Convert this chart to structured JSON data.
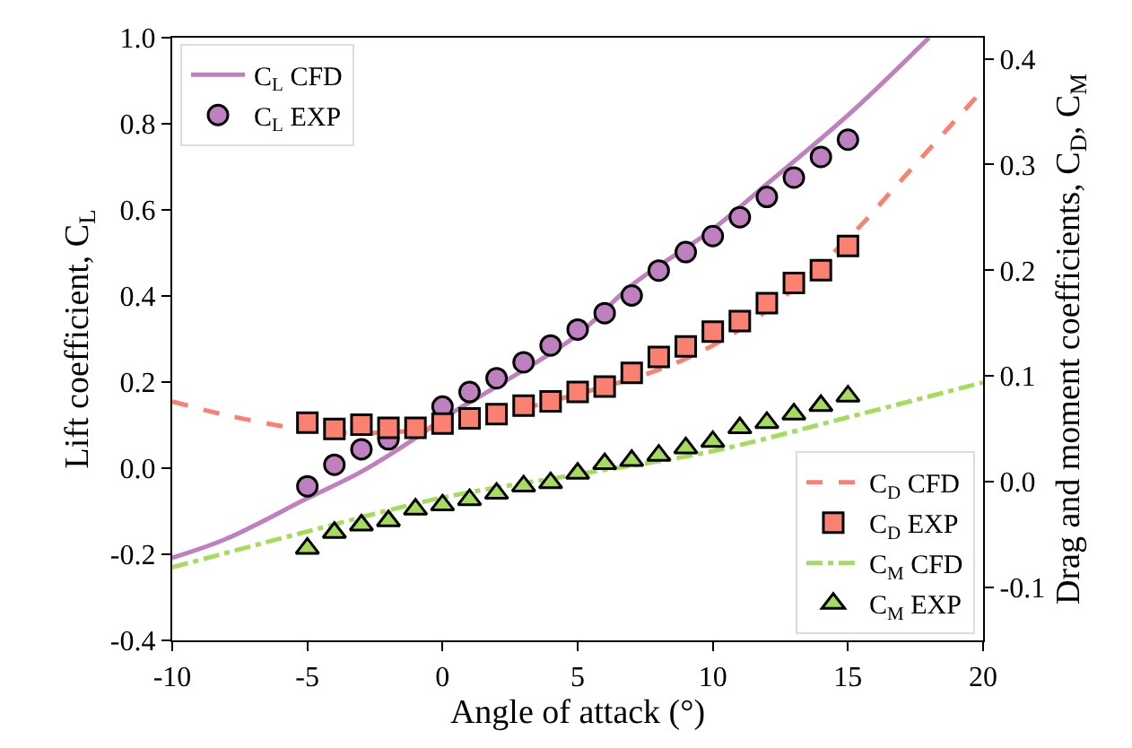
{
  "chart_data": {
    "type": "line",
    "xlabel": "Angle of attack (°)",
    "ylabel": "Lift coefficient, C$_{L}$",
    "y2label": "Drag and moment coefficients, C$_{D}$, C$_{M}$",
    "xlim": [
      -10,
      20
    ],
    "xticks": [
      -10,
      -5,
      0,
      5,
      10,
      15,
      20
    ],
    "ylim": [
      -0.4,
      1.0
    ],
    "yticks": [
      {
        "value": -0.4,
        "label": "-0.4"
      },
      {
        "value": -0.2,
        "label": "-0.2"
      },
      {
        "value": 0,
        "label": "0.0"
      },
      {
        "value": 0.2,
        "label": "0.2"
      },
      {
        "value": 0.4,
        "label": "0.4"
      },
      {
        "value": 0.6,
        "label": "0.6"
      },
      {
        "value": 0.8,
        "label": "0.8"
      },
      {
        "value": 1.0,
        "label": "1.0"
      }
    ],
    "y2lim": [
      -0.15,
      0.42
    ],
    "y2ticks": [
      {
        "value": -0.1,
        "label": "-0.1"
      },
      {
        "value": 0,
        "label": "0.0"
      },
      {
        "value": 0.1,
        "label": "0.1"
      },
      {
        "value": 0.2,
        "label": "0.2"
      },
      {
        "value": 0.3,
        "label": "0.3"
      },
      {
        "value": 0.4,
        "label": "0.4"
      }
    ],
    "legend": [
      "top left",
      "bottom right"
    ],
    "series": [
      {
        "name": "C$_{L}$ CFD",
        "line_style": "solid",
        "marker": "none",
        "color": "#bf80c0",
        "x": [
          -10,
          -8,
          -5,
          -3,
          -1,
          0,
          2,
          5,
          7,
          10,
          12,
          15,
          18
        ],
        "values": [
          -0.208,
          -0.164,
          -0.07,
          -0.008,
          0.07,
          0.115,
          0.19,
          0.31,
          0.425,
          0.555,
          0.66,
          0.82,
          1.0
        ]
      },
      {
        "name": "C$_{L}$ EXP",
        "type": "scatter",
        "marker": "circle",
        "color": "#bf80c0",
        "x": [
          -5,
          -4,
          -3,
          -2,
          -1,
          0,
          1,
          2,
          3,
          4,
          5,
          6,
          7,
          8,
          9,
          10,
          11,
          12,
          13,
          14,
          15
        ],
        "values": [
          -0.042,
          0.008,
          0.044,
          0.067,
          null,
          0.143,
          0.177,
          0.209,
          0.246,
          0.285,
          0.322,
          0.36,
          0.401,
          0.459,
          0.502,
          0.539,
          0.583,
          0.63,
          0.675,
          0.723,
          0.763
        ]
      },
      {
        "name": "C$_{D}$ CFD",
        "axis": "y2",
        "line_style": "dashed",
        "marker": "none",
        "color": "#fa8072",
        "x": [
          -10,
          -8,
          -5,
          -3,
          0,
          5,
          8,
          10,
          12,
          15,
          17,
          20
        ],
        "values": [
          0.076,
          0.063,
          0.049,
          0.046,
          0.052,
          0.083,
          0.106,
          0.129,
          0.162,
          0.23,
          0.286,
          0.371
        ]
      },
      {
        "name": "C$_{D}$ EXP",
        "type": "scatter",
        "axis": "y2",
        "marker": "square",
        "color": "#fa8072",
        "x": [
          -5,
          -4,
          -3,
          -2,
          -1,
          0,
          1,
          2,
          3,
          4,
          5,
          6,
          7,
          8,
          9,
          10,
          11,
          12,
          13,
          14,
          15
        ],
        "values": [
          0.056,
          0.05,
          0.054,
          0.051,
          0.051,
          0.055,
          0.06,
          0.064,
          0.072,
          0.076,
          0.085,
          0.09,
          0.103,
          0.118,
          0.128,
          0.142,
          0.152,
          0.169,
          0.188,
          0.2,
          0.223
        ]
      },
      {
        "name": "C$_{M}$ CFD",
        "axis": "y2",
        "line_style": "dashdot",
        "marker": "none",
        "color": "#a6dc5e",
        "x": [
          -10,
          -5,
          0,
          5,
          10,
          15,
          20
        ],
        "values": [
          -0.081,
          -0.047,
          -0.015,
          0.007,
          0.029,
          0.061,
          0.094
        ]
      },
      {
        "name": "C$_{M}$ EXP",
        "type": "scatter",
        "axis": "y2",
        "marker": "triangle",
        "color": "#a6dc5e",
        "x": [
          -5,
          -4,
          -3,
          -2,
          -1,
          0,
          1,
          2,
          3,
          4,
          5,
          6,
          7,
          8,
          9,
          10,
          11,
          12,
          13,
          14,
          15
        ],
        "values": [
          -0.063,
          -0.048,
          -0.041,
          -0.037,
          -0.026,
          -0.022,
          -0.017,
          -0.011,
          -0.004,
          -0.001,
          0.008,
          0.017,
          0.02,
          0.025,
          0.032,
          0.038,
          0.051,
          0.056,
          0.064,
          0.072,
          0.081
        ]
      }
    ]
  }
}
